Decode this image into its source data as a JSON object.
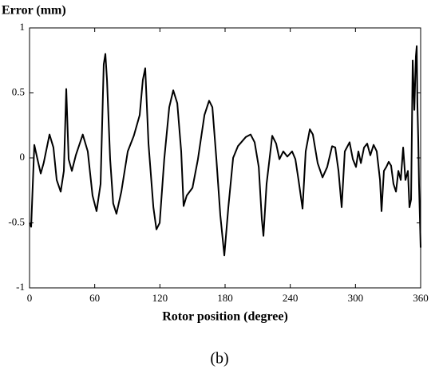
{
  "chart_data": {
    "type": "line",
    "y_label": "Error (mm)",
    "x_label": "Rotor position (degree)",
    "caption": "(b)",
    "x": [
      0,
      1.5,
      4.4,
      7.3,
      10.3,
      13,
      18.4,
      22,
      25,
      28.7,
      31.6,
      33.8,
      36,
      39,
      42.6,
      49,
      53.6,
      58,
      61.7,
      65.4,
      68.3,
      69.8,
      71.3,
      74.2,
      77,
      80,
      84.5,
      90.4,
      96,
      101.4,
      104.3,
      106.5,
      109.5,
      114,
      116.8,
      119.8,
      124,
      128.6,
      132.3,
      136,
      139.6,
      141.8,
      144.7,
      150,
      155,
      161,
      165.3,
      168.3,
      172,
      175.6,
      179.3,
      183,
      187.4,
      191.8,
      199,
      203.5,
      207.2,
      211,
      213.8,
      215.3,
      218.2,
      223.4,
      227,
      230,
      233.6,
      237.3,
      241.7,
      244.7,
      247.6,
      251.3,
      254.2,
      258,
      260.8,
      265.2,
      269.7,
      274,
      278.5,
      281.4,
      284.4,
      287.3,
      290.2,
      294.6,
      297.6,
      300.5,
      302.7,
      305,
      307.9,
      310.8,
      313.7,
      316.7,
      319.6,
      322.6,
      324,
      326.2,
      328.4,
      330.6,
      332.8,
      335,
      337.3,
      339.5,
      341.7,
      343.9,
      346,
      348.3,
      349.7,
      351.2,
      352.7,
      354.2,
      355.6,
      356.4,
      357,
      357.8,
      358.5,
      360
    ],
    "series": [
      {
        "name": "Error",
        "color": "#000000",
        "values": [
          -0.5,
          -0.53,
          0.1,
          -0.01,
          -0.12,
          -0.04,
          0.18,
          0.08,
          -0.17,
          -0.26,
          -0.1,
          0.53,
          -0.01,
          -0.1,
          0.02,
          0.18,
          0.05,
          -0.29,
          -0.41,
          -0.2,
          0.72,
          0.8,
          0.6,
          -0.01,
          -0.35,
          -0.43,
          -0.26,
          0.05,
          0.17,
          0.33,
          0.6,
          0.69,
          0.11,
          -0.38,
          -0.55,
          -0.5,
          -0.01,
          0.39,
          0.52,
          0.42,
          0.05,
          -0.37,
          -0.29,
          -0.23,
          -0.01,
          0.33,
          0.44,
          0.39,
          -0.01,
          -0.44,
          -0.75,
          -0.38,
          0,
          0.09,
          0.16,
          0.18,
          0.12,
          -0.07,
          -0.47,
          -0.6,
          -0.2,
          0.17,
          0.11,
          -0.01,
          0.05,
          0.01,
          0.05,
          -0.01,
          -0.17,
          -0.39,
          0.05,
          0.22,
          0.18,
          -0.04,
          -0.15,
          -0.07,
          0.09,
          0.08,
          -0.1,
          -0.38,
          0.05,
          0.12,
          -0.01,
          -0.07,
          0.05,
          -0.04,
          0.08,
          0.11,
          0.02,
          0.1,
          0.05,
          -0.17,
          -0.41,
          -0.1,
          -0.07,
          -0.03,
          -0.06,
          -0.2,
          -0.26,
          -0.1,
          -0.17,
          0.08,
          -0.17,
          -0.1,
          -0.38,
          -0.32,
          0.75,
          0.37,
          0.78,
          0.86,
          0.42,
          0.14,
          -0.2,
          -0.69
        ]
      }
    ],
    "xlim": [
      0,
      360
    ],
    "xticks": [
      0,
      60,
      120,
      180,
      240,
      300,
      360
    ],
    "ylim": [
      -1,
      1
    ],
    "yticks": [
      -1,
      -0.5,
      0,
      0.5,
      1
    ],
    "grid": false
  }
}
